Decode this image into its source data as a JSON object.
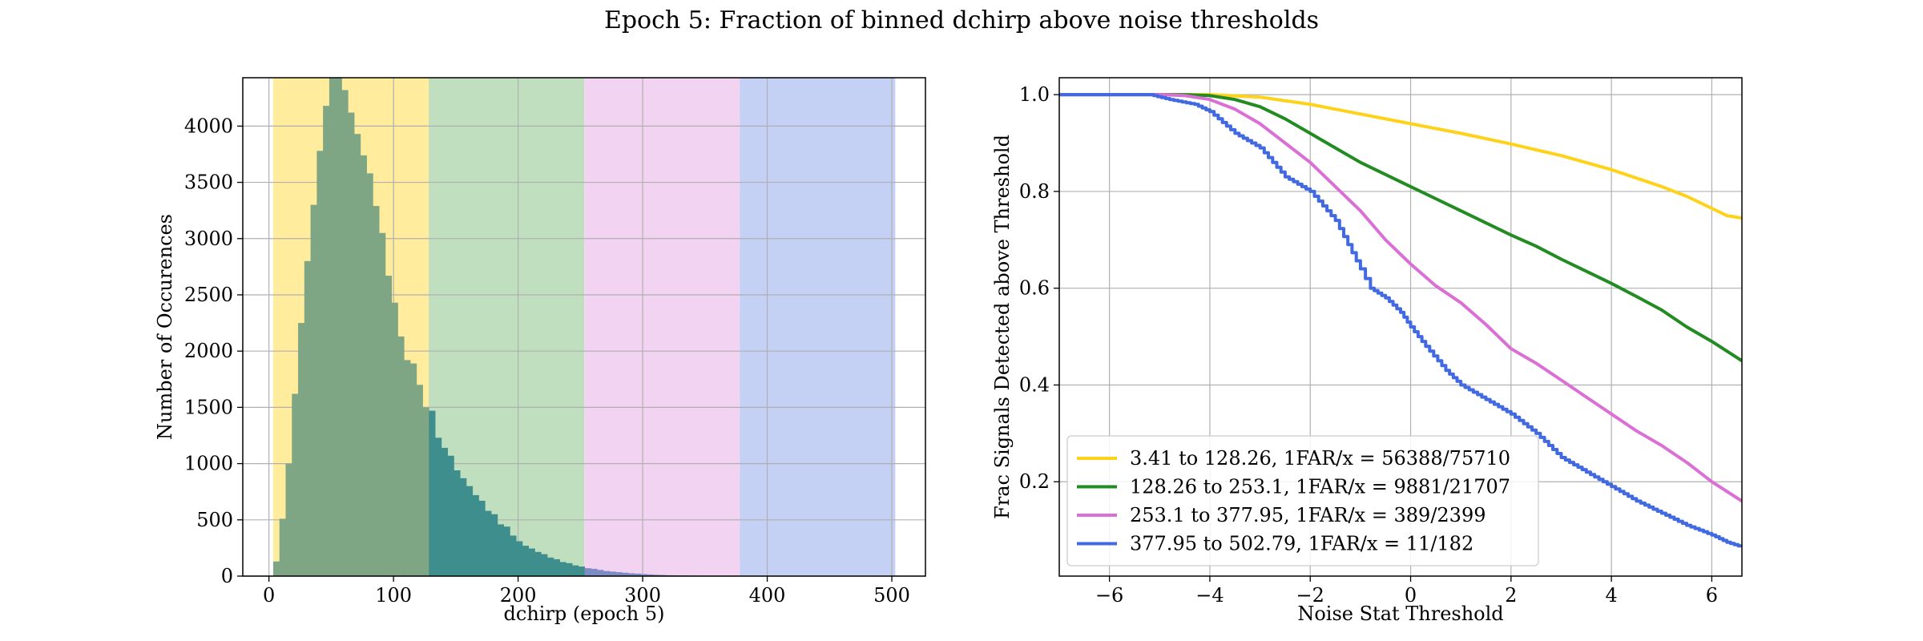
{
  "figure": {
    "title": "Epoch 5: Fraction of binned dchirp above noise thresholds"
  },
  "chart_data": [
    {
      "type": "bar",
      "subtype": "histogram",
      "xlabel": "dchirp (epoch 5)",
      "ylabel": "Number of Occurences",
      "xlim": [
        -21,
        527
      ],
      "ylim": [
        0,
        4430
      ],
      "xticks": [
        0,
        100,
        200,
        300,
        400,
        500
      ],
      "yticks": [
        0,
        500,
        1000,
        1500,
        2000,
        2500,
        3000,
        3500,
        4000
      ],
      "grid": true,
      "bands": [
        {
          "from": 3.41,
          "to": 128.26,
          "color": "#FFEC9C"
        },
        {
          "from": 128.26,
          "to": 253.1,
          "color": "#BFDFBF"
        },
        {
          "from": 253.1,
          "to": 377.95,
          "color": "#F2D3F2"
        },
        {
          "from": 377.95,
          "to": 502.79,
          "color": "#C4D0F4"
        }
      ],
      "bin_width": 5,
      "bin_start": 3.41,
      "bin_colors": [
        "#7EA584",
        "#3E8E8E",
        "#7E8CC6",
        "#5E6FD4"
      ],
      "values": [
        130,
        510,
        1000,
        1620,
        2250,
        2800,
        3300,
        3780,
        4180,
        4480,
        4450,
        4320,
        4120,
        3930,
        3740,
        3580,
        3290,
        3050,
        2670,
        2430,
        2130,
        1920,
        1890,
        1700,
        1500,
        1470,
        1230,
        1140,
        1070,
        940,
        870,
        800,
        720,
        670,
        580,
        550,
        460,
        440,
        360,
        310,
        270,
        245,
        215,
        195,
        165,
        150,
        125,
        115,
        95,
        85,
        70,
        65,
        55,
        45,
        40,
        35,
        30,
        25,
        22,
        18,
        15,
        12,
        10,
        8,
        7,
        6,
        5,
        4,
        3,
        3,
        2,
        2,
        2,
        1,
        1,
        1,
        1,
        1,
        1,
        1,
        1,
        1,
        1,
        1,
        1,
        1,
        0,
        0,
        0,
        0
      ]
    },
    {
      "type": "line",
      "xlabel": "Noise Stat Threshold",
      "ylabel": "Frac Signals Detected above Threshold",
      "xlim": [
        -7,
        6.6
      ],
      "ylim": [
        0.005,
        1.035
      ],
      "xticks": [
        -6,
        -4,
        -2,
        0,
        2,
        4,
        6
      ],
      "yticks": [
        0.2,
        0.4,
        0.6,
        0.8,
        1.0
      ],
      "ytick_labels": [
        "0.2",
        "0.4",
        "0.6",
        "0.8",
        "1.0"
      ],
      "grid": true,
      "legend_position": "lower-left",
      "series": [
        {
          "name": "3.41 to 128.26, 1FAR/x = 56388/75710",
          "color": "#FFD21A",
          "stepped": false,
          "x": [
            -7,
            -4,
            -3,
            -2,
            -1,
            0,
            1,
            2,
            3,
            4,
            5,
            5.5,
            6,
            6.3,
            6.6
          ],
          "y": [
            1.0,
            1.0,
            0.995,
            0.98,
            0.96,
            0.94,
            0.92,
            0.898,
            0.874,
            0.845,
            0.81,
            0.79,
            0.765,
            0.75,
            0.745
          ]
        },
        {
          "name": "128.26 to 253.1, 1FAR/x = 9881/21707",
          "color": "#228B22",
          "stepped": false,
          "x": [
            -7,
            -4.5,
            -4,
            -3.5,
            -3,
            -2.5,
            -2,
            -1.5,
            -1,
            -0.5,
            0,
            0.5,
            1,
            1.5,
            2,
            2.5,
            3,
            3.5,
            4,
            4.5,
            5,
            5.5,
            6,
            6.3,
            6.6
          ],
          "y": [
            1.0,
            1.0,
            0.998,
            0.99,
            0.975,
            0.95,
            0.92,
            0.89,
            0.86,
            0.835,
            0.81,
            0.785,
            0.76,
            0.735,
            0.71,
            0.687,
            0.66,
            0.635,
            0.61,
            0.583,
            0.555,
            0.52,
            0.49,
            0.47,
            0.45
          ]
        },
        {
          "name": "253.1 to 377.95, 1FAR/x = 389/2399",
          "color": "#DA70D6",
          "stepped": false,
          "x": [
            -7,
            -5,
            -4.5,
            -4,
            -3.5,
            -3,
            -2.5,
            -2,
            -1.5,
            -1,
            -0.5,
            0,
            0.5,
            1,
            1.5,
            2,
            2.5,
            3,
            3.5,
            4,
            4.5,
            5,
            5.5,
            6,
            6.3,
            6.6
          ],
          "y": [
            1.0,
            1.0,
            0.998,
            0.99,
            0.97,
            0.94,
            0.9,
            0.86,
            0.81,
            0.76,
            0.7,
            0.65,
            0.605,
            0.57,
            0.525,
            0.475,
            0.445,
            0.41,
            0.375,
            0.34,
            0.305,
            0.275,
            0.24,
            0.2,
            0.18,
            0.16
          ]
        },
        {
          "name": "377.95 to 502.79, 1FAR/x = 11/182",
          "color": "#4169E1",
          "stepped": true,
          "x": [
            -7,
            -5.2,
            -4.8,
            -4.3,
            -4,
            -3.5,
            -3,
            -2.5,
            -2,
            -1.5,
            -1,
            -0.8,
            -0.5,
            -0.2,
            0,
            0.3,
            0.7,
            1,
            1.5,
            2,
            2.5,
            3,
            3.5,
            4,
            4.5,
            5,
            5.5,
            6,
            6.3,
            6.6
          ],
          "y": [
            1.0,
            1.0,
            0.99,
            0.98,
            0.965,
            0.92,
            0.89,
            0.83,
            0.8,
            0.74,
            0.64,
            0.6,
            0.58,
            0.55,
            0.52,
            0.48,
            0.43,
            0.4,
            0.37,
            0.34,
            0.3,
            0.25,
            0.22,
            0.19,
            0.16,
            0.135,
            0.11,
            0.09,
            0.075,
            0.065
          ]
        }
      ]
    }
  ]
}
